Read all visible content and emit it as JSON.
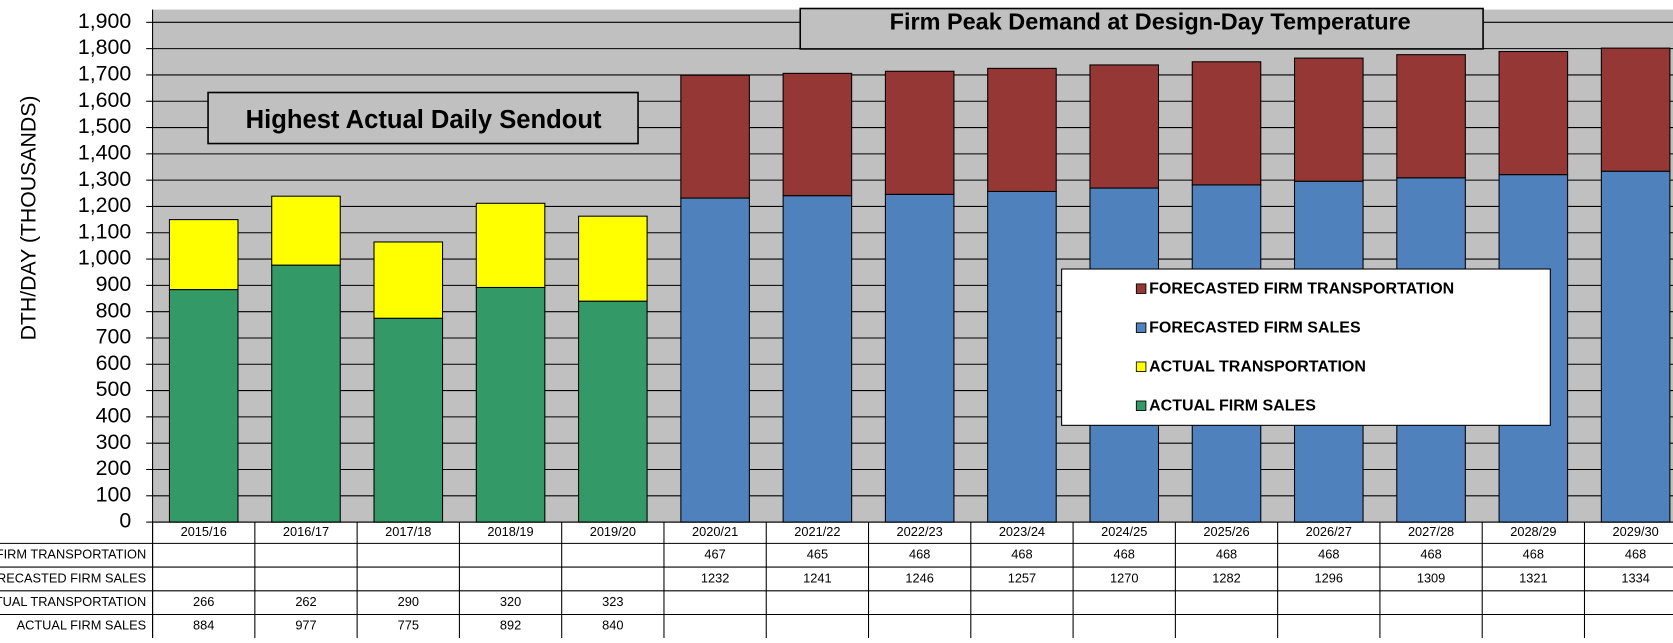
{
  "chart_data": {
    "type": "bar",
    "stacked": true,
    "title": "Firm Peak Demand at Design-Day Temperature",
    "annotations": [
      "Highest Actual Daily Sendout"
    ],
    "y_label": "DTH/DAY (THOUSANDS)",
    "categories": [
      "2015/16",
      "2016/17",
      "2017/18",
      "2018/19",
      "2019/20",
      "2020/21",
      "2021/22",
      "2022/23",
      "2023/24",
      "2024/25",
      "2025/26",
      "2026/27",
      "2027/28",
      "2028/29",
      "2029/30"
    ],
    "series": [
      {
        "name": "ACTUAL FIRM SALES",
        "color": "#339966",
        "values": [
          884,
          977,
          775,
          892,
          840,
          null,
          null,
          null,
          null,
          null,
          null,
          null,
          null,
          null,
          null
        ]
      },
      {
        "name": "ACTUAL TRANSPORTATION",
        "color": "#ffff00",
        "values": [
          266,
          262,
          290,
          320,
          323,
          null,
          null,
          null,
          null,
          null,
          null,
          null,
          null,
          null,
          null
        ]
      },
      {
        "name": "FORECASTED FIRM SALES",
        "color": "#4f81bd",
        "values": [
          null,
          null,
          null,
          null,
          null,
          1232,
          1241,
          1246,
          1257,
          1270,
          1282,
          1296,
          1309,
          1321,
          1334
        ]
      },
      {
        "name": "FORECASTED FIRM TRANSPORTATION",
        "color": "#953735",
        "values": [
          null,
          null,
          null,
          null,
          null,
          467,
          465,
          468,
          468,
          468,
          468,
          468,
          468,
          468,
          468
        ]
      }
    ],
    "ylim": [
      0,
      1900
    ],
    "yticks": [
      0,
      100,
      200,
      300,
      400,
      500,
      600,
      700,
      800,
      900,
      {
        "value": 1000,
        "label": "1,000"
      },
      {
        "value": 1100,
        "label": "1,100"
      },
      {
        "value": 1200,
        "label": "1,200"
      },
      {
        "value": 1300,
        "label": "1,300"
      },
      {
        "value": 1400,
        "label": "1,400"
      },
      {
        "value": 1500,
        "label": "1,500"
      },
      {
        "value": 1600,
        "label": "1,600"
      },
      {
        "value": 1700,
        "label": "1,700"
      },
      {
        "value": 1800,
        "label": "1,800"
      },
      {
        "value": 1900,
        "label": "1,900"
      }
    ],
    "grid": true,
    "legend": "right",
    "data_table": true
  }
}
